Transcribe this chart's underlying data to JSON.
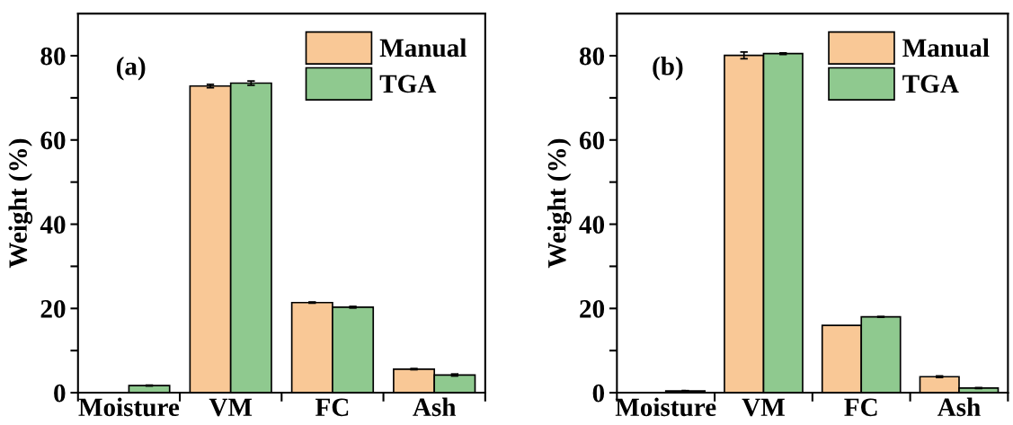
{
  "chart_data": [
    {
      "type": "bar",
      "annotations": [
        "(a)"
      ],
      "ylabel": "Weight (%)",
      "categories": [
        "Moisture",
        "VM",
        "FC",
        "Ash"
      ],
      "series": [
        {
          "name": "Manual",
          "color": "#f9c896",
          "values": [
            null,
            72.8,
            21.4,
            5.6
          ],
          "errors": [
            null,
            0.4,
            0.15,
            0.15
          ]
        },
        {
          "name": "TGA",
          "color": "#8fc98f",
          "values": [
            1.7,
            73.5,
            20.3,
            4.2
          ],
          "errors": [
            0.1,
            0.5,
            0.2,
            0.25
          ]
        }
      ],
      "ylim": [
        0,
        90
      ],
      "yticks": [
        0,
        {
          "value": 10,
          "label": null
        },
        20,
        {
          "value": 30,
          "label": null
        },
        40,
        {
          "value": 50,
          "label": null
        },
        60,
        {
          "value": 70,
          "label": null
        },
        80
      ],
      "legend": "top right",
      "grid": false
    },
    {
      "type": "bar",
      "annotations": [
        "(b)"
      ],
      "ylabel": "Weight (%)",
      "categories": [
        "Moisture",
        "VM",
        "FC",
        "Ash"
      ],
      "series": [
        {
          "name": "Manual",
          "color": "#f9c896",
          "values": [
            null,
            80.1,
            16.0,
            3.8
          ],
          "errors": [
            null,
            0.8,
            null,
            0.2
          ]
        },
        {
          "name": "TGA",
          "color": "#8fc98f",
          "values": [
            0.4,
            80.5,
            18.0,
            1.1
          ],
          "errors": [
            0.1,
            0.2,
            0.1,
            0.1
          ]
        }
      ],
      "ylim": [
        0,
        90
      ],
      "yticks": [
        0,
        {
          "value": 10,
          "label": null
        },
        20,
        {
          "value": 30,
          "label": null
        },
        40,
        {
          "value": 50,
          "label": null
        },
        60,
        {
          "value": 70,
          "label": null
        },
        80
      ],
      "legend": "top right",
      "grid": false
    }
  ]
}
